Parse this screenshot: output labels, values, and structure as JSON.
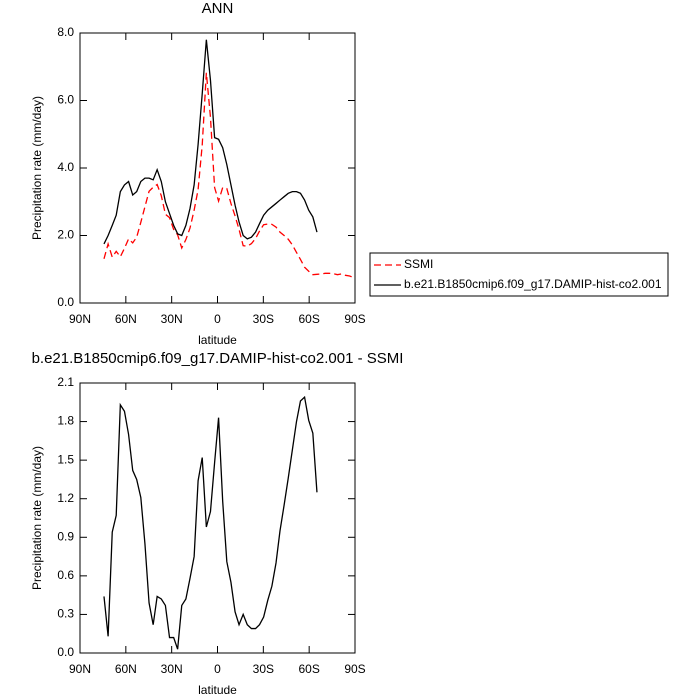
{
  "chart_data": [
    {
      "type": "line",
      "title": "ANN",
      "xlabel": "latitude",
      "ylabel": "Precipitation rate (mm/day)",
      "x": [
        74.3,
        71.6,
        68.9,
        66.3,
        63.6,
        60.9,
        58.2,
        55.5,
        52.9,
        50.2,
        47.5,
        44.8,
        42.1,
        39.5,
        36.8,
        34.1,
        31.4,
        28.7,
        26.1,
        23.4,
        20.7,
        18.0,
        15.3,
        12.7,
        10.0,
        7.3,
        4.6,
        1.9,
        -0.7,
        -3.4,
        -6.1,
        -8.8,
        -11.5,
        -14.1,
        -16.8,
        -19.5,
        -22.2,
        -24.9,
        -27.5,
        -30.2,
        -32.9,
        -35.6,
        -38.3,
        -40.9,
        -43.6,
        -46.3,
        -49.0,
        -51.7,
        -54.3,
        -57.0,
        -59.7,
        -62.4,
        -65.1,
        -67.7,
        -70.4,
        -73.1,
        -75.8,
        -78.5,
        -81.1,
        -83.8,
        -86.5,
        -89.2
      ],
      "series": [
        {
          "name": "SSMI",
          "color": "#ff0000",
          "dashed": true,
          "values": [
            1.31,
            1.75,
            1.36,
            1.53,
            1.37,
            1.62,
            1.9,
            1.78,
            1.95,
            2.39,
            2.85,
            3.31,
            3.43,
            3.51,
            3.18,
            2.63,
            2.53,
            2.18,
            2.02,
            1.63,
            1.88,
            2.22,
            2.75,
            3.36,
            4.68,
            6.82,
            5.5,
            3.42,
            3.02,
            3.42,
            3.39,
            2.95,
            2.58,
            2.18,
            1.7,
            1.68,
            1.76,
            1.91,
            2.13,
            2.32,
            2.34,
            2.33,
            2.25,
            2.1,
            2.0,
            1.89,
            1.72,
            1.5,
            1.29,
            1.06,
            0.94,
            0.84,
            0.85,
            0.86,
            0.88,
            0.88,
            0.87,
            0.84,
            0.86,
            0.82,
            0.8,
            0.75
          ]
        },
        {
          "name": "b.e21.B1850cmip6.f09_g17.DAMIP-hist-co2.001",
          "color": "#000000",
          "dashed": false,
          "values": [
            1.75,
            2.0,
            2.3,
            2.6,
            3.3,
            3.5,
            3.6,
            3.2,
            3.3,
            3.6,
            3.7,
            3.7,
            3.65,
            3.95,
            3.6,
            3.0,
            2.65,
            2.3,
            2.05,
            2.0,
            2.3,
            2.8,
            3.5,
            4.7,
            6.2,
            7.8,
            6.6,
            4.9,
            4.85,
            4.6,
            4.1,
            3.5,
            2.9,
            2.4,
            2.0,
            1.9,
            1.95,
            2.1,
            2.35,
            2.6,
            2.75,
            2.85,
            2.95,
            3.05,
            3.15,
            3.25,
            3.3,
            3.3,
            3.25,
            3.05,
            2.75,
            2.55,
            2.1,
            null,
            null,
            null,
            null,
            null,
            null,
            null,
            null,
            null
          ]
        }
      ],
      "xlim": [
        90,
        -90
      ],
      "xticks": [
        {
          "value": 90,
          "label": "90N"
        },
        {
          "value": 60,
          "label": "60N"
        },
        {
          "value": 30,
          "label": "30N"
        },
        0,
        {
          "value": -30,
          "label": "30S"
        },
        {
          "value": -60,
          "label": "60S"
        },
        {
          "value": -90,
          "label": "90S"
        }
      ],
      "ylim": [
        0,
        8
      ],
      "yticks": [
        {
          "value": 0,
          "label": "0.0"
        },
        {
          "value": 2,
          "label": "2.0"
        },
        {
          "value": 4,
          "label": "4.0"
        },
        {
          "value": 6,
          "label": "6.0"
        },
        {
          "value": 8,
          "label": "8.0"
        }
      ],
      "legend": "right"
    },
    {
      "type": "line",
      "title": "b.e21.B1850cmip6.f09_g17.DAMIP-hist-co2.001 - SSMI",
      "xlabel": "latitude",
      "ylabel": "Precipitation rate (mm/day)",
      "x": [
        74.3,
        71.6,
        68.9,
        66.3,
        63.6,
        60.9,
        58.2,
        55.5,
        52.9,
        50.2,
        47.5,
        44.8,
        42.1,
        39.5,
        36.8,
        34.1,
        31.4,
        28.7,
        26.1,
        23.4,
        20.7,
        18.0,
        15.3,
        12.7,
        10.0,
        7.3,
        4.6,
        1.9,
        -0.7,
        -3.4,
        -6.1,
        -8.8,
        -11.5,
        -14.1,
        -16.8,
        -19.5,
        -22.2,
        -24.9,
        -27.5,
        -30.2,
        -32.9,
        -35.6,
        -38.3,
        -40.9,
        -43.6,
        -46.3,
        -49.0,
        -51.7,
        -54.3,
        -57.0,
        -59.7,
        -62.4,
        -65.1
      ],
      "series": [
        {
          "color": "#000000",
          "values": [
            0.44,
            0.13,
            0.94,
            1.07,
            1.93,
            1.88,
            1.7,
            1.42,
            1.35,
            1.21,
            0.85,
            0.39,
            0.22,
            0.44,
            0.42,
            0.37,
            0.12,
            0.12,
            0.03,
            0.37,
            0.42,
            0.58,
            0.75,
            1.34,
            1.52,
            0.98,
            1.1,
            1.48,
            1.83,
            1.18,
            0.71,
            0.55,
            0.32,
            0.22,
            0.3,
            0.22,
            0.19,
            0.19,
            0.22,
            0.28,
            0.41,
            0.52,
            0.7,
            0.95,
            1.15,
            1.36,
            1.58,
            1.8,
            1.96,
            1.99,
            1.81,
            1.71,
            1.25
          ]
        }
      ],
      "xlim": [
        90,
        -90
      ],
      "xticks": [
        {
          "value": 90,
          "label": "90N"
        },
        {
          "value": 60,
          "label": "60N"
        },
        {
          "value": 30,
          "label": "30N"
        },
        0,
        {
          "value": -30,
          "label": "30S"
        },
        {
          "value": -60,
          "label": "60S"
        },
        {
          "value": -90,
          "label": "90S"
        }
      ],
      "ylim": [
        0,
        2.1
      ],
      "yticks": [
        {
          "value": 0,
          "label": "0.0"
        },
        {
          "value": 0.3,
          "label": "0.3"
        },
        {
          "value": 0.6,
          "label": "0.6"
        },
        {
          "value": 0.9,
          "label": "0.9"
        },
        {
          "value": 1.2,
          "label": "1.2"
        },
        {
          "value": 1.5,
          "label": "1.5"
        },
        {
          "value": 1.8,
          "label": "1.8"
        },
        {
          "value": 2.1,
          "label": "2.1"
        }
      ]
    }
  ]
}
